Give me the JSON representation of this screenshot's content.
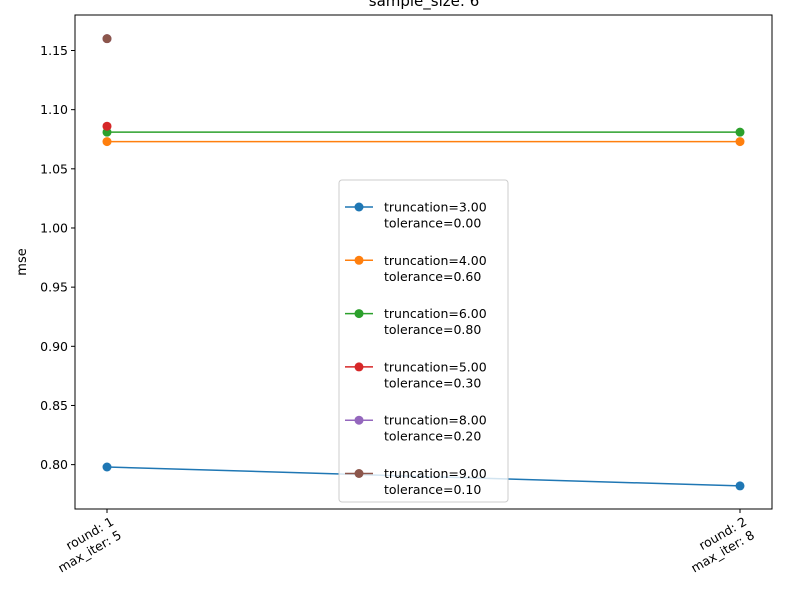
{
  "chart_data": {
    "type": "line",
    "title": "sample_size: 6",
    "xlabel": "",
    "ylabel": "mse",
    "categories": [
      "round: 1\nmax_iter: 5",
      "round: 2\nmax_iter: 8"
    ],
    "ylim": [
      0.7625,
      1.18
    ],
    "yticks": [
      0.8,
      0.85,
      0.9,
      0.95,
      1.0,
      1.05,
      1.1,
      1.15
    ],
    "ytick_labels": [
      "0.80",
      "0.85",
      "0.90",
      "0.95",
      "1.00",
      "1.05",
      "1.10",
      "1.15"
    ],
    "grid": false,
    "legend_position": "center",
    "series": [
      {
        "name": "truncation=3.00\ntolerance=0.00",
        "color": "#1f77b4",
        "values": [
          0.798,
          0.782
        ]
      },
      {
        "name": "truncation=4.00\ntolerance=0.60",
        "color": "#ff7f0e",
        "values": [
          1.073,
          1.073
        ]
      },
      {
        "name": "truncation=6.00\ntolerance=0.80",
        "color": "#2ca02c",
        "values": [
          1.081,
          1.081
        ]
      },
      {
        "name": "truncation=5.00\ntolerance=0.30",
        "color": "#d62728",
        "values": [
          1.086,
          null
        ]
      },
      {
        "name": "truncation=8.00\ntolerance=0.20",
        "color": "#9467bd",
        "values": [
          1.16,
          null
        ]
      },
      {
        "name": "truncation=9.00\ntolerance=0.10",
        "color": "#8c564b",
        "values": [
          1.16,
          null
        ]
      }
    ]
  }
}
